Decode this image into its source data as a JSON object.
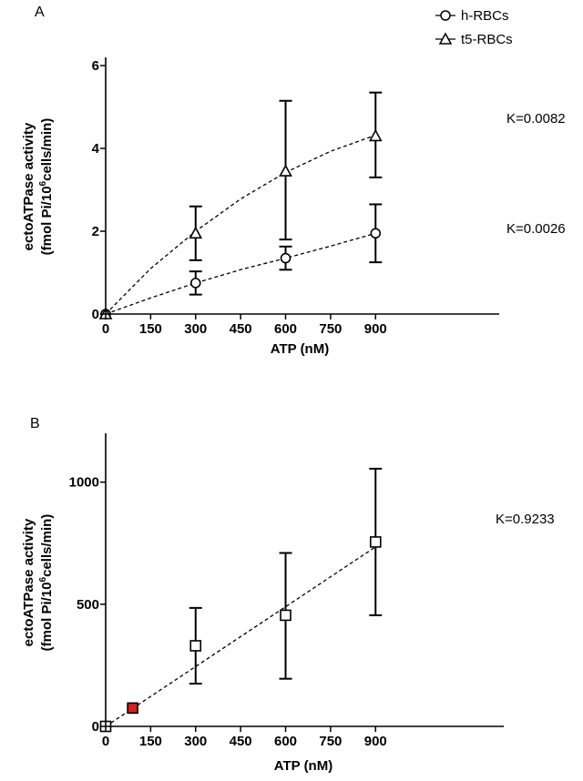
{
  "chart_data": [
    {
      "panel": "A",
      "type": "scatter",
      "xlabel": "ATP (nM)",
      "ylabel_line1": "ectoATPase activity",
      "ylabel_line2_prefix": "(fmol Pi/10",
      "ylabel_line2_sup": "6",
      "ylabel_line2_suffix": "cells/min)",
      "xlim": [
        0,
        1050
      ],
      "ylim": [
        0,
        6.2
      ],
      "xticks": [
        0,
        150,
        300,
        450,
        600,
        750,
        900
      ],
      "xtick_labels": [
        "0",
        "150",
        "300",
        "450",
        "600",
        "750",
        "900"
      ],
      "yticks": [
        0,
        2,
        4,
        6
      ],
      "ytick_labels": [
        "0",
        "2",
        "4",
        "6"
      ],
      "grid": false,
      "legend": {
        "position": "top-right",
        "entries": [
          {
            "label": "h-RBCs",
            "marker": "circle"
          },
          {
            "label": "t5-RBCs",
            "marker": "triangle"
          }
        ]
      },
      "series": [
        {
          "name": "h-RBCs",
          "marker": "circle",
          "x": [
            0,
            300,
            600,
            900
          ],
          "y": [
            0,
            0.75,
            1.35,
            1.95
          ],
          "yerr_low": [
            0,
            0.47,
            1.07,
            1.25
          ],
          "yerr_high": [
            0,
            1.03,
            1.63,
            2.65
          ],
          "fit": {
            "type": "dashed-curve",
            "x": [
              0,
              150,
              300,
              450,
              600,
              750,
              900
            ],
            "y": [
              0,
              0.39,
              0.75,
              1.07,
              1.35,
              1.64,
              1.95
            ]
          }
        },
        {
          "name": "t5-RBCs",
          "marker": "triangle",
          "x": [
            0,
            300,
            600,
            900
          ],
          "y": [
            0,
            1.95,
            3.45,
            4.3
          ],
          "yerr_low": [
            0,
            1.3,
            1.8,
            3.3
          ],
          "yerr_high": [
            0,
            2.6,
            5.15,
            5.35
          ],
          "fit": {
            "type": "dashed-curve",
            "x": [
              0,
              150,
              300,
              450,
              600,
              750,
              900
            ],
            "y": [
              0,
              1.1,
              2.0,
              2.78,
              3.42,
              3.93,
              4.32
            ]
          }
        }
      ],
      "annotations": [
        {
          "text": "K=0.0082",
          "at_y": 4.55
        },
        {
          "text": "K=0.0026",
          "at_y": 2.0
        }
      ]
    },
    {
      "panel": "B",
      "type": "scatter",
      "xlabel": "ATP (nM)",
      "ylabel_line1": "ectoATPase activity",
      "ylabel_line2_prefix": "(fmol Pi/10",
      "ylabel_line2_sup": "6",
      "ylabel_line2_suffix": "cells/min)",
      "xlim": [
        0,
        1050
      ],
      "ylim": [
        0,
        1200
      ],
      "xticks": [
        0,
        150,
        300,
        450,
        600,
        750,
        900
      ],
      "xtick_labels": [
        "0",
        "150",
        "300",
        "450",
        "600",
        "750",
        "900"
      ],
      "yticks": [
        0,
        500,
        1000
      ],
      "ytick_labels": [
        "0",
        "500",
        "1000"
      ],
      "grid": false,
      "series": [
        {
          "marker": "square",
          "x": [
            0,
            90,
            300,
            600,
            900
          ],
          "y": [
            0,
            75,
            330,
            455,
            755
          ],
          "yerr_low": [
            0,
            75,
            175,
            195,
            455
          ],
          "yerr_high": [
            0,
            75,
            485,
            710,
            1055
          ],
          "highlight_index": 1,
          "highlight_color": "#d42020",
          "fit": {
            "type": "dashed-line",
            "x": [
              0,
              900
            ],
            "y": [
              0,
              735
            ]
          }
        }
      ],
      "annotations": [
        {
          "text": "K=0.9233",
          "at_y": 760
        }
      ]
    }
  ]
}
